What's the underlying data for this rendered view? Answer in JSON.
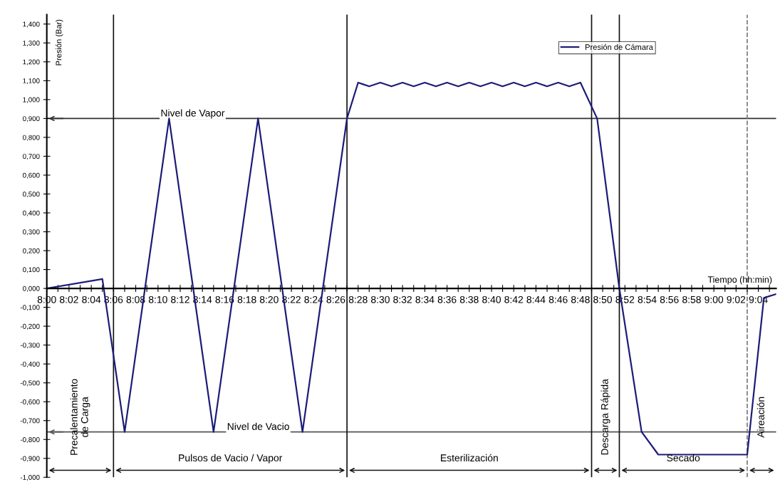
{
  "chart_data": {
    "type": "line",
    "ylabel": "Presión (Bar)",
    "xlabel": "Tiempo (hh:min)",
    "series": [
      {
        "name": "Presión de Cámara",
        "color": "#1c1c78",
        "x": [
          8,
          8.0833,
          8.1167,
          8.1833,
          8.25,
          8.3167,
          8.3833,
          8.45,
          8.4667,
          8.4833,
          8.5,
          8.5167,
          8.5333,
          8.55,
          8.5667,
          8.5833,
          8.6,
          8.6167,
          8.6333,
          8.65,
          8.6667,
          8.6833,
          8.7,
          8.7167,
          8.7333,
          8.75,
          8.7667,
          8.7833,
          8.8,
          8.825,
          8.8583,
          8.8917,
          8.9167,
          9.05,
          9.075,
          9.0933
        ],
        "values": [
          0,
          0.05,
          -0.76,
          0.9,
          -0.76,
          0.9,
          -0.76,
          0.9,
          1.09,
          1.07,
          1.09,
          1.07,
          1.09,
          1.07,
          1.09,
          1.07,
          1.09,
          1.07,
          1.09,
          1.07,
          1.09,
          1.07,
          1.09,
          1.07,
          1.09,
          1.07,
          1.09,
          1.07,
          1.09,
          0.9,
          0,
          -0.76,
          -0.88,
          -0.88,
          -0.05,
          -0.03
        ]
      }
    ],
    "xlim": [
      8,
      9.0933
    ],
    "ylim": [
      -1.0,
      1.45
    ],
    "xticks": [
      {
        "value": 8,
        "label": "8:00"
      },
      {
        "value": 8.0167,
        "label": null
      },
      {
        "value": 8.0333,
        "label": "8:02"
      },
      {
        "value": 8.05,
        "label": null
      },
      {
        "value": 8.0667,
        "label": "8:04"
      },
      {
        "value": 8.0833,
        "label": null
      },
      {
        "value": 8.1,
        "label": "8:06"
      },
      {
        "value": 8.1167,
        "label": null
      },
      {
        "value": 8.1333,
        "label": "8:08"
      },
      {
        "value": 8.15,
        "label": null
      },
      {
        "value": 8.1667,
        "label": "8:10"
      },
      {
        "value": 8.1833,
        "label": null
      },
      {
        "value": 8.2,
        "label": "8:12"
      },
      {
        "value": 8.2167,
        "label": null
      },
      {
        "value": 8.2333,
        "label": "8:14"
      },
      {
        "value": 8.25,
        "label": null
      },
      {
        "value": 8.2667,
        "label": "8:16"
      },
      {
        "value": 8.2833,
        "label": null
      },
      {
        "value": 8.3,
        "label": "8:18"
      },
      {
        "value": 8.3167,
        "label": null
      },
      {
        "value": 8.3333,
        "label": "8:20"
      },
      {
        "value": 8.35,
        "label": null
      },
      {
        "value": 8.3667,
        "label": "8:22"
      },
      {
        "value": 8.3833,
        "label": null
      },
      {
        "value": 8.4,
        "label": "8:24"
      },
      {
        "value": 8.4167,
        "label": null
      },
      {
        "value": 8.4333,
        "label": "8:26"
      },
      {
        "value": 8.45,
        "label": null
      },
      {
        "value": 8.4667,
        "label": "8:28"
      },
      {
        "value": 8.4833,
        "label": null
      },
      {
        "value": 8.5,
        "label": "8:30"
      },
      {
        "value": 8.5167,
        "label": null
      },
      {
        "value": 8.5333,
        "label": "8:32"
      },
      {
        "value": 8.55,
        "label": null
      },
      {
        "value": 8.5667,
        "label": "8:34"
      },
      {
        "value": 8.5833,
        "label": null
      },
      {
        "value": 8.6,
        "label": "8:36"
      },
      {
        "value": 8.6167,
        "label": null
      },
      {
        "value": 8.6333,
        "label": "8:38"
      },
      {
        "value": 8.65,
        "label": null
      },
      {
        "value": 8.6667,
        "label": "8:40"
      },
      {
        "value": 8.6833,
        "label": null
      },
      {
        "value": 8.7,
        "label": "8:42"
      },
      {
        "value": 8.7167,
        "label": null
      },
      {
        "value": 8.7333,
        "label": "8:44"
      },
      {
        "value": 8.75,
        "label": null
      },
      {
        "value": 8.7667,
        "label": "8:46"
      },
      {
        "value": 8.7833,
        "label": null
      },
      {
        "value": 8.8,
        "label": "8:48"
      },
      {
        "value": 8.8167,
        "label": null
      },
      {
        "value": 8.8333,
        "label": "8:50"
      },
      {
        "value": 8.85,
        "label": null
      },
      {
        "value": 8.8667,
        "label": "8:52"
      },
      {
        "value": 8.8833,
        "label": null
      },
      {
        "value": 8.9,
        "label": "8:54"
      },
      {
        "value": 8.9167,
        "label": null
      },
      {
        "value": 8.9333,
        "label": "8:56"
      },
      {
        "value": 8.95,
        "label": null
      },
      {
        "value": 8.9667,
        "label": "8:58"
      },
      {
        "value": 8.9833,
        "label": null
      },
      {
        "value": 9,
        "label": "9:00"
      },
      {
        "value": 9.0167,
        "label": null
      },
      {
        "value": 9.0333,
        "label": "9:02"
      },
      {
        "value": 9.05,
        "label": null
      },
      {
        "value": 9.0667,
        "label": "9:04"
      },
      {
        "value": 9.0833,
        "label": null
      }
    ],
    "yticks": [
      {
        "value": -1.0,
        "label": "-1,000"
      },
      {
        "value": -0.9,
        "label": "-0,900"
      },
      {
        "value": -0.8,
        "label": "-0,800"
      },
      {
        "value": -0.7,
        "label": "-0,700"
      },
      {
        "value": -0.6,
        "label": "-0,600"
      },
      {
        "value": -0.5,
        "label": "-0,500"
      },
      {
        "value": -0.4,
        "label": "-0,400"
      },
      {
        "value": -0.3,
        "label": "-0,300"
      },
      {
        "value": -0.2,
        "label": "-0,200"
      },
      {
        "value": -0.1,
        "label": "-0,100"
      },
      {
        "value": 0,
        "label": "0,000"
      },
      {
        "value": 0.1,
        "label": "0,100"
      },
      {
        "value": 0.2,
        "label": "0,200"
      },
      {
        "value": 0.3,
        "label": "0,300"
      },
      {
        "value": 0.4,
        "label": "0,400"
      },
      {
        "value": 0.5,
        "label": "0,500"
      },
      {
        "value": 0.6,
        "label": "0,600"
      },
      {
        "value": 0.7,
        "label": "0,700"
      },
      {
        "value": 0.8,
        "label": "0,800"
      },
      {
        "value": 0.9,
        "label": "0,900"
      },
      {
        "value": 1.0,
        "label": "1,000"
      },
      {
        "value": 1.1,
        "label": "1,100"
      },
      {
        "value": 1.2,
        "label": "1,200"
      },
      {
        "value": 1.3,
        "label": "1,300"
      },
      {
        "value": 1.4,
        "label": "1,400"
      }
    ],
    "ref_lines": [
      {
        "axis": "y",
        "value": 0.9,
        "label": "Nivel de Vapor",
        "color": "#333333"
      },
      {
        "axis": "y",
        "value": -0.76,
        "label": "Nivel de Vacio",
        "color": "#555555"
      },
      {
        "axis": "x",
        "value": 8.1,
        "color": "#111111"
      },
      {
        "axis": "x",
        "value": 8.45,
        "color": "#111111"
      },
      {
        "axis": "x",
        "value": 8.8167,
        "color": "#111111"
      },
      {
        "axis": "x",
        "value": 8.8583,
        "color": "#111111"
      },
      {
        "axis": "x",
        "value": 9.05,
        "color": "#777777",
        "line_style": "dashed"
      }
    ],
    "annotations": [
      "Precalentamiento\nde Carga",
      "Pulsos de Vacio / Vapor",
      "Esterilización",
      "Descarga Rápida",
      "Secado",
      "Aireación"
    ],
    "grid": false,
    "legend": "top right",
    "marker": "none",
    "line_style": "solid"
  }
}
